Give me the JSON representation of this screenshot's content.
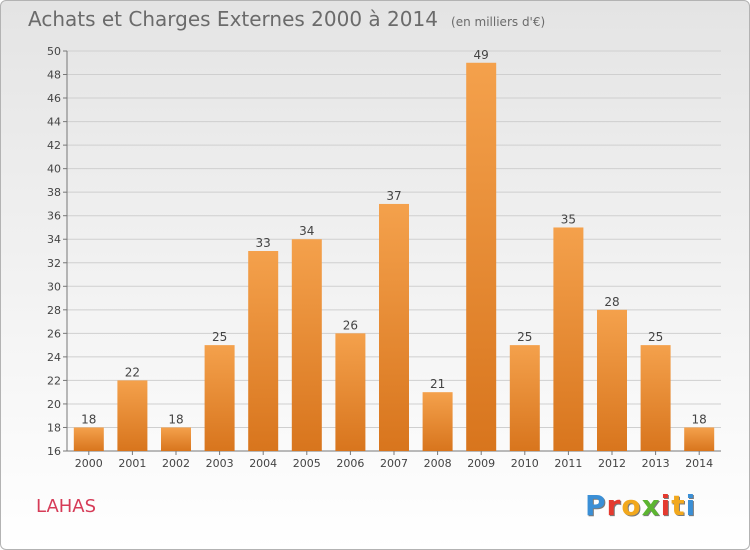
{
  "title": "Achats et Charges Externes 2000 à 2014",
  "unit": "(en milliers d'€)",
  "commune": "LAHAS",
  "brand": {
    "text": "Proxiti",
    "letter_colors": [
      "#3a8fd6",
      "#e53a2f",
      "#f2a81d",
      "#5cb531",
      "#e53a2f",
      "#f2a81d",
      "#3a8fd6"
    ]
  },
  "colors": {
    "bar_top": "#f4a14c",
    "bar_bottom": "#d8751d",
    "grid": "#cfcfcf"
  },
  "chart_data": {
    "type": "bar",
    "categories": [
      "2000",
      "2001",
      "2002",
      "2003",
      "2004",
      "2005",
      "2006",
      "2007",
      "2008",
      "2009",
      "2010",
      "2011",
      "2012",
      "2013",
      "2014"
    ],
    "values": [
      18,
      22,
      18,
      25,
      33,
      34,
      26,
      37,
      21,
      49,
      25,
      35,
      28,
      25,
      18
    ],
    "ylim": [
      16,
      50
    ],
    "yticks": [
      16,
      18,
      20,
      22,
      24,
      26,
      28,
      30,
      32,
      34,
      36,
      38,
      40,
      42,
      44,
      46,
      48,
      50
    ],
    "grid": true,
    "legend": "none"
  }
}
